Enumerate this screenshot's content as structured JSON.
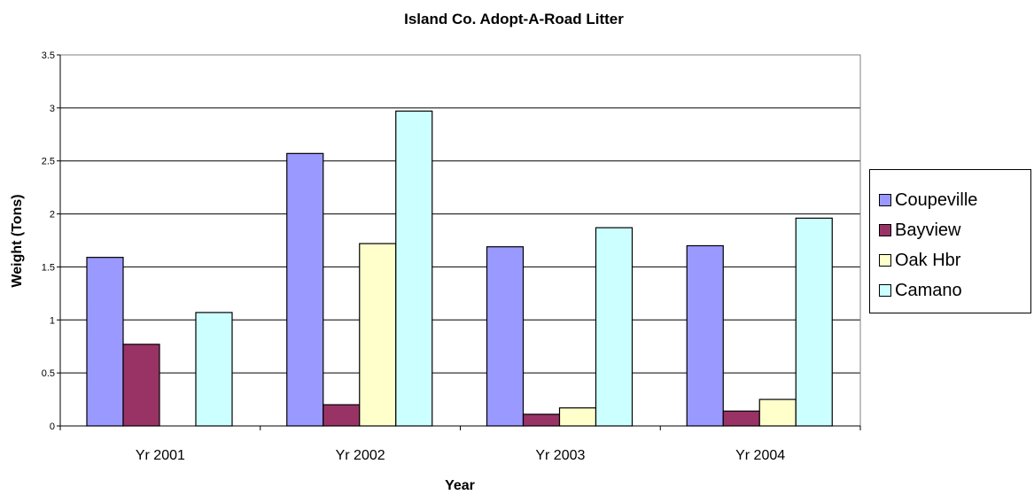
{
  "chart_data": {
    "type": "bar",
    "title": "Island Co. Adopt-A-Road Litter",
    "xlabel": "Year",
    "ylabel": "Weight (Tons)",
    "categories": [
      "Yr 2001",
      "Yr 2002",
      "Yr 2003",
      "Yr 2004"
    ],
    "ylim": [
      0,
      3.5
    ],
    "yticks": [
      "0",
      "0.5",
      "1",
      "1.5",
      "2",
      "2.5",
      "3",
      "3.5"
    ],
    "grid": true,
    "legend_position": "right",
    "series": [
      {
        "name": "Coupeville",
        "color": "#9999FF",
        "values": [
          1.59,
          2.57,
          1.69,
          1.7
        ]
      },
      {
        "name": "Bayview",
        "color": "#993366",
        "values": [
          0.77,
          0.2,
          0.11,
          0.14
        ]
      },
      {
        "name": "Oak Hbr",
        "color": "#FFFFCC",
        "values": [
          0.0,
          1.72,
          0.17,
          0.25
        ]
      },
      {
        "name": "Camano",
        "color": "#CCFFFF",
        "values": [
          1.07,
          2.97,
          1.87,
          1.96
        ]
      }
    ]
  }
}
